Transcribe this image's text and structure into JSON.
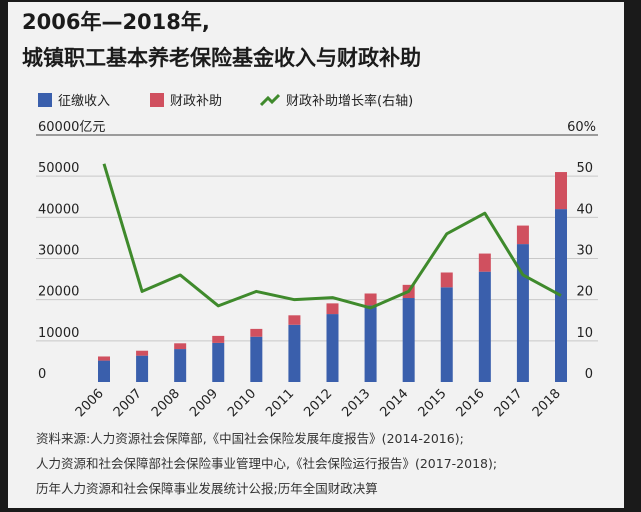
{
  "title": {
    "line1": "2006年—2018年,",
    "line2": "城镇职工基本养老保险基金收入与财政补助"
  },
  "legend": {
    "contrib": "征缴收入",
    "subsidy": "财政补助",
    "growth": "财政补助增长率(右轴)"
  },
  "colors": {
    "contrib": "#3a5fac",
    "subsidy": "#d0505f",
    "growth": "#3f8a2c"
  },
  "chart_data": {
    "type": "bar",
    "stacked": true,
    "categories": [
      "2006",
      "2007",
      "2008",
      "2009",
      "2010",
      "2011",
      "2012",
      "2013",
      "2014",
      "2015",
      "2016",
      "2017",
      "2018"
    ],
    "series": [
      {
        "name": "征缴收入",
        "values": [
          5200,
          6400,
          8000,
          9500,
          11000,
          13900,
          16500,
          18600,
          20400,
          23000,
          26800,
          33500,
          42000
        ]
      },
      {
        "name": "财政补助",
        "values": [
          1000,
          1200,
          1400,
          1700,
          1900,
          2300,
          2600,
          2900,
          3200,
          3600,
          4400,
          4500,
          9000
        ]
      }
    ],
    "line_series": {
      "name": "财政补助增长率(右轴)",
      "axis": "right",
      "values": [
        53,
        22,
        26,
        18.5,
        22,
        20,
        20.5,
        18,
        22,
        36,
        41,
        26,
        21
      ]
    },
    "left_axis": {
      "label_top": "60000亿元",
      "ticks": [
        "50000",
        "40000",
        "30000",
        "20000",
        "10000",
        "0"
      ],
      "tick_values": [
        50000,
        40000,
        30000,
        20000,
        10000,
        0
      ],
      "ylim": [
        0,
        60000
      ]
    },
    "right_axis": {
      "label_top": "60%",
      "ticks": [
        "50",
        "40",
        "30",
        "20",
        "10",
        "0"
      ],
      "tick_values": [
        50,
        40,
        30,
        20,
        10,
        0
      ],
      "ylim": [
        0,
        60
      ]
    }
  },
  "source": {
    "line1": "资料来源:人力资源社会保障部,《中国社会保险发展年度报告》(2014-2016);",
    "line2": "人力资源和社会保障部社会保险事业管理中心,《社会保险运行报告》(2017-2018);",
    "line3": "历年人力资源和社会保障事业发展统计公报;历年全国财政决算"
  }
}
